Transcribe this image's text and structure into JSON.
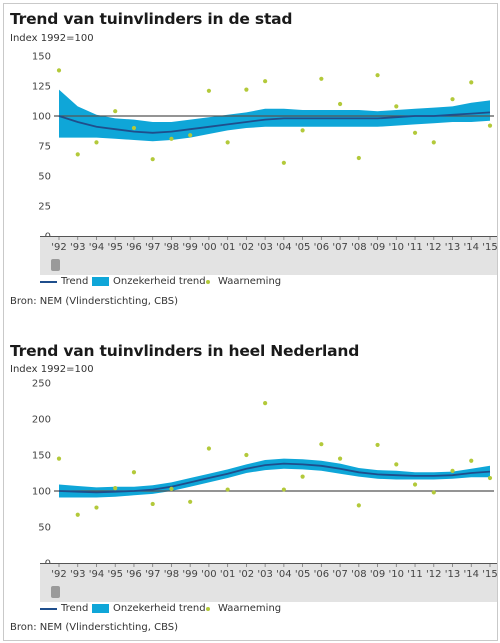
{
  "chart_data": [
    {
      "type": "line",
      "title": "Trend van tuinvlinders in de stad",
      "subtitle": "Index 1992=100",
      "x": [
        "'92",
        "'93",
        "'94",
        "'95",
        "'96",
        "'97",
        "'98",
        "'99",
        "'00",
        "'01",
        "'02",
        "'03",
        "'04",
        "'05",
        "'06",
        "'07",
        "'08",
        "'09",
        "'10",
        "'11",
        "'12",
        "'13",
        "'14",
        "'15"
      ],
      "ylim": [
        0,
        150
      ],
      "yticks": [
        0,
        25,
        50,
        75,
        100,
        125,
        150
      ],
      "reference_line": 100,
      "series": [
        {
          "name": "Trend",
          "kind": "line",
          "color": "#1f4e8c",
          "values": [
            100,
            95,
            91,
            89,
            87,
            86,
            87,
            89,
            91,
            93,
            95,
            97,
            98,
            98,
            98,
            98,
            98,
            98,
            99,
            100,
            100,
            101,
            102,
            103
          ]
        },
        {
          "name": "Onzekerheid trend",
          "kind": "band",
          "color": "#0fa6d8",
          "lower": [
            82,
            82,
            82,
            81,
            80,
            79,
            80,
            82,
            85,
            88,
            90,
            91,
            91,
            91,
            91,
            91,
            91,
            91,
            92,
            93,
            94,
            95,
            95,
            96
          ],
          "upper": [
            122,
            108,
            101,
            98,
            97,
            95,
            95,
            97,
            99,
            101,
            103,
            106,
            106,
            105,
            105,
            105,
            105,
            104,
            105,
            106,
            107,
            108,
            111,
            113
          ]
        },
        {
          "name": "Waarneming",
          "kind": "scatter",
          "color": "#b3c93a",
          "values": [
            138,
            68,
            78,
            104,
            90,
            64,
            81,
            84,
            121,
            78,
            122,
            129,
            61,
            88,
            131,
            110,
            65,
            134,
            108,
            86,
            78,
            114,
            128,
            92
          ]
        }
      ],
      "legend_position": "bottom-left",
      "source": "Bron: NEM (Vlinderstichting, CBS)"
    },
    {
      "type": "line",
      "title": "Trend van tuinvlinders in heel Nederland",
      "subtitle": "Index 1992=100",
      "x": [
        "'92",
        "'93",
        "'94",
        "'95",
        "'96",
        "'97",
        "'98",
        "'99",
        "'00",
        "'01",
        "'02",
        "'03",
        "'04",
        "'05",
        "'06",
        "'07",
        "'08",
        "'09",
        "'10",
        "'11",
        "'12",
        "'13",
        "'14",
        "'15"
      ],
      "ylim": [
        0,
        250
      ],
      "yticks": [
        0,
        50,
        100,
        150,
        200,
        250
      ],
      "reference_line": 100,
      "series": [
        {
          "name": "Trend",
          "kind": "line",
          "color": "#1f4e8c",
          "values": [
            100,
            99,
            98,
            99,
            100,
            102,
            106,
            112,
            118,
            124,
            131,
            136,
            138,
            137,
            135,
            131,
            126,
            123,
            122,
            121,
            121,
            122,
            125,
            127
          ]
        },
        {
          "name": "Onzekerheid trend",
          "kind": "band",
          "color": "#0fa6d8",
          "lower": [
            91,
            91,
            91,
            92,
            94,
            96,
            100,
            106,
            112,
            118,
            125,
            129,
            131,
            130,
            128,
            124,
            120,
            117,
            116,
            116,
            116,
            117,
            119,
            119
          ]
        },
        {
          "name": "Waarneming",
          "kind": "scatter",
          "color": "#b3c93a",
          "values": [
            145,
            67,
            77,
            104,
            126,
            82,
            103,
            85,
            159,
            102,
            150,
            222,
            102,
            120,
            165,
            145,
            80,
            164,
            137,
            109,
            98,
            128,
            142,
            118
          ]
        }
      ],
      "legend_position": "bottom-left",
      "source": "Bron: NEM (Vlinderstichting, CBS)"
    }
  ],
  "legend": {
    "trend": "Trend",
    "band": "Onzekerheid trend",
    "dot": "Waarneming"
  }
}
